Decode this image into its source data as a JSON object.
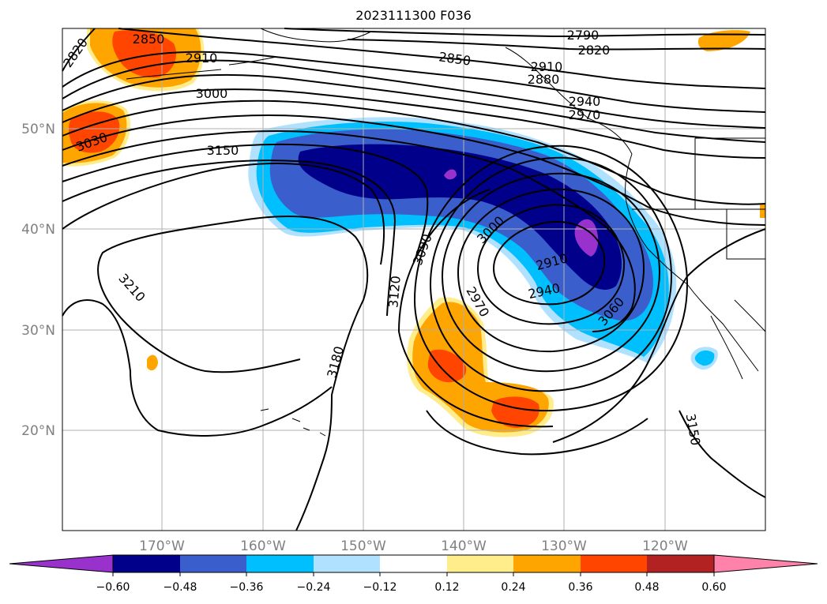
{
  "title": "2023111300 F036",
  "map": {
    "lon_range": [
      -180,
      -110
    ],
    "lat_range": [
      10,
      60
    ],
    "lat_ticks": [
      {
        "value": 20,
        "label": "20°N"
      },
      {
        "value": 30,
        "label": "30°N"
      },
      {
        "value": 40,
        "label": "40°N"
      },
      {
        "value": 50,
        "label": "50°N"
      }
    ],
    "lon_ticks": [
      {
        "value": -170,
        "label": "170°W"
      },
      {
        "value": -160,
        "label": "160°W"
      },
      {
        "value": -150,
        "label": "150°W"
      },
      {
        "value": -140,
        "label": "140°W"
      },
      {
        "value": -130,
        "label": "130°W"
      },
      {
        "value": -120,
        "label": "120°W"
      }
    ],
    "grid": true
  },
  "contour_labels": [
    "2790",
    "2820",
    "2820",
    "2850",
    "2850",
    "2880",
    "2910",
    "2910",
    "2910",
    "2940",
    "2940",
    "2970",
    "2970",
    "3000",
    "3000",
    "3030",
    "3060",
    "3090",
    "3120",
    "3150",
    "3150",
    "3180",
    "3210"
  ],
  "colorbar": {
    "colors": [
      "#9932cc",
      "#00008b",
      "#3a5fcd",
      "#00bfff",
      "#b0e2ff",
      "#ffffff",
      "#ffec8b",
      "#ffa500",
      "#ff4500",
      "#b22222",
      "#ff82ab"
    ],
    "colors_extend": {
      "min": "#9932cc",
      "max": "#ff82ab"
    },
    "tick_labels": [
      "−0.60",
      "−0.48",
      "−0.36",
      "−0.24",
      "−0.12",
      "0.12",
      "0.24",
      "0.36",
      "0.48",
      "0.60"
    ]
  },
  "colors": {
    "neg_strong": "#00008b",
    "neg_mid": "#3a5fcd",
    "neg_light": "#00bfff",
    "neg_faint": "#b0e2ff",
    "neg_extreme": "#9932cc",
    "pos_faint": "#ffec8b",
    "pos_light": "#ffa500",
    "pos_mid": "#ff4500",
    "grid": "#b0b0b0",
    "tick_text": "#808080"
  }
}
